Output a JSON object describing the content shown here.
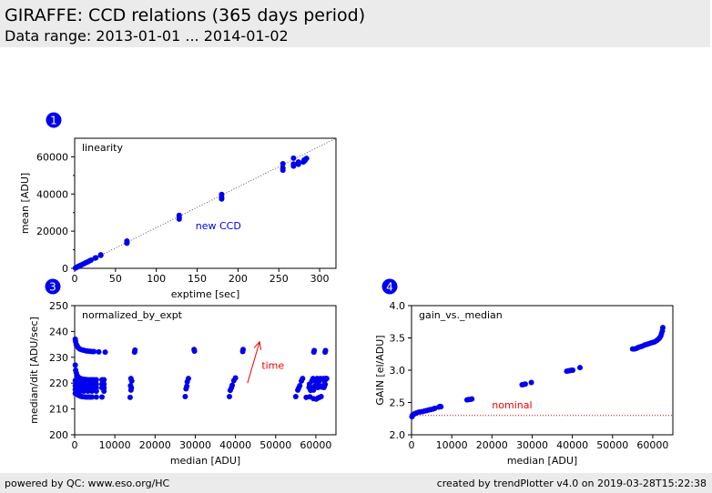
{
  "header": {
    "title": "GIRAFFE: CCD relations (365 days period)",
    "subtitle": "Data range: 2013-01-01 ... 2014-01-02"
  },
  "footer": {
    "left": "powered by QC: www.eso.org/HC",
    "right": "created by trendPlotter v4.0 on 2019-03-28T15:22:38"
  },
  "colors": {
    "points": "#0000ee",
    "badge": "#0000ee",
    "annotation": "#ee0000",
    "header_bg": "#ebebeb"
  },
  "chart_data": [
    {
      "id": "1",
      "badge": "1",
      "type": "scatter",
      "title": "linearity",
      "xlabel": "exptime [sec]",
      "ylabel": "mean [ADU]",
      "xlim": [
        0,
        320
      ],
      "ylim": [
        0,
        70000
      ],
      "xticks": [
        0,
        50,
        100,
        150,
        200,
        250,
        300
      ],
      "yticks": [
        0,
        20000,
        40000,
        60000
      ],
      "yminor": [
        10000,
        30000,
        50000
      ],
      "grid": false,
      "annotations": [
        {
          "text": "new CCD",
          "x": 148,
          "y": 21000,
          "color": "#0000ee"
        }
      ],
      "reference_line": {
        "style": "dotted",
        "color": "#555555",
        "points": [
          [
            0,
            0
          ],
          [
            320,
            70000
          ]
        ]
      },
      "points": [
        [
          1,
          200
        ],
        [
          2,
          450
        ],
        [
          3,
          680
        ],
        [
          4,
          900
        ],
        [
          5,
          1100
        ],
        [
          6,
          1350
        ],
        [
          7,
          1550
        ],
        [
          8,
          1800
        ],
        [
          10,
          2200
        ],
        [
          12,
          2650
        ],
        [
          14,
          3100
        ],
        [
          16,
          3500
        ],
        [
          18,
          3950
        ],
        [
          20,
          4400
        ],
        [
          25,
          5500
        ],
        [
          26,
          5700
        ],
        [
          32,
          7000
        ],
        [
          32,
          7300
        ],
        [
          64,
          13500
        ],
        [
          64,
          14200
        ],
        [
          64,
          14700
        ],
        [
          128,
          26500
        ],
        [
          128,
          27500
        ],
        [
          128,
          28500
        ],
        [
          180,
          37300
        ],
        [
          180,
          38200
        ],
        [
          180,
          39800
        ],
        [
          255,
          52800
        ],
        [
          255,
          54000
        ],
        [
          255,
          56300
        ],
        [
          268,
          55000
        ],
        [
          268,
          56200
        ],
        [
          268,
          59300
        ],
        [
          274,
          56000
        ],
        [
          274,
          57200
        ],
        [
          280,
          57200
        ],
        [
          281,
          58300
        ],
        [
          283,
          58800
        ],
        [
          284,
          59200
        ],
        [
          282,
          58000
        ]
      ]
    },
    {
      "id": "3",
      "badge": "3",
      "type": "scatter",
      "title": "normalized_by_expt",
      "xlabel": "median [ADU]",
      "ylabel": "median/dit [ADU/sec]",
      "xlim": [
        0,
        65000
      ],
      "ylim": [
        200,
        250
      ],
      "xticks": [
        0,
        10000,
        20000,
        30000,
        40000,
        50000,
        60000
      ],
      "yticks": [
        200,
        210,
        220,
        230,
        240,
        250
      ],
      "grid": false,
      "annotations": [
        {
          "text": "time",
          "x": 46500,
          "y": 225.5,
          "color": "#ee0000"
        }
      ],
      "arrow": {
        "from": [
          43000,
          220
        ],
        "to": [
          46000,
          236
        ],
        "color": "#ee0000"
      },
      "points": [
        [
          150,
          237
        ],
        [
          250,
          236
        ],
        [
          400,
          235
        ],
        [
          600,
          234.5
        ],
        [
          900,
          233.7
        ],
        [
          1300,
          233.2
        ],
        [
          1800,
          232.9
        ],
        [
          2300,
          232.7
        ],
        [
          2800,
          232.5
        ],
        [
          3300,
          232.4
        ],
        [
          3800,
          232.3
        ],
        [
          4300,
          232.2
        ],
        [
          4800,
          232.2
        ],
        [
          6000,
          232.1
        ],
        [
          7600,
          232
        ],
        [
          14900,
          232
        ],
        [
          15000,
          232.8
        ],
        [
          29800,
          232.4
        ],
        [
          29700,
          233
        ],
        [
          41800,
          232.2
        ],
        [
          41900,
          233
        ],
        [
          59500,
          232
        ],
        [
          59600,
          232.6
        ],
        [
          62300,
          232
        ],
        [
          62400,
          232.6
        ],
        [
          150,
          227
        ],
        [
          250,
          225
        ],
        [
          400,
          224
        ],
        [
          600,
          223
        ],
        [
          900,
          222.3
        ],
        [
          1300,
          221.9
        ],
        [
          1800,
          221.6
        ],
        [
          2300,
          221.5
        ],
        [
          2800,
          221.4
        ],
        [
          3300,
          221.3
        ],
        [
          3800,
          221.3
        ],
        [
          4300,
          221.3
        ],
        [
          4800,
          221.3
        ],
        [
          5400,
          221.3
        ],
        [
          6800,
          221.3
        ],
        [
          7300,
          221.3
        ],
        [
          150,
          221
        ],
        [
          400,
          220.5
        ],
        [
          900,
          220
        ],
        [
          1300,
          219.8
        ],
        [
          1800,
          219.7
        ],
        [
          2300,
          219.6
        ],
        [
          2800,
          219.6
        ],
        [
          3300,
          219.6
        ],
        [
          3800,
          219.6
        ],
        [
          4300,
          219.6
        ],
        [
          5400,
          219.6
        ],
        [
          6800,
          219.6
        ],
        [
          7300,
          219.6
        ],
        [
          150,
          219
        ],
        [
          400,
          218.8
        ],
        [
          900,
          218.6
        ],
        [
          1300,
          218.4
        ],
        [
          1800,
          218.3
        ],
        [
          2300,
          218.2
        ],
        [
          2800,
          218.2
        ],
        [
          3300,
          218.2
        ],
        [
          3800,
          218.2
        ],
        [
          4300,
          218.2
        ],
        [
          5400,
          218.2
        ],
        [
          6800,
          218.2
        ],
        [
          7300,
          218.2
        ],
        [
          150,
          217.5
        ],
        [
          400,
          217.3
        ],
        [
          900,
          217.2
        ],
        [
          1300,
          217
        ],
        [
          1800,
          217
        ],
        [
          2300,
          216.9
        ],
        [
          3300,
          216.9
        ],
        [
          4300,
          216.9
        ],
        [
          5400,
          216.9
        ],
        [
          7300,
          216.9
        ],
        [
          150,
          216
        ],
        [
          400,
          215.8
        ],
        [
          900,
          215.3
        ],
        [
          1300,
          215
        ],
        [
          1800,
          214.8
        ],
        [
          2300,
          214.7
        ],
        [
          2800,
          214.6
        ],
        [
          3300,
          214.6
        ],
        [
          3800,
          214.6
        ],
        [
          4300,
          214.6
        ],
        [
          5400,
          214.6
        ],
        [
          6800,
          214.6
        ],
        [
          14000,
          221.8
        ],
        [
          14200,
          220.8
        ],
        [
          13900,
          219
        ],
        [
          14100,
          218.2
        ],
        [
          14000,
          217.3
        ],
        [
          13800,
          214.5
        ],
        [
          28300,
          221.8
        ],
        [
          28000,
          220.5
        ],
        [
          27900,
          218.8
        ],
        [
          27700,
          217.8
        ],
        [
          27500,
          214.8
        ],
        [
          40000,
          222
        ],
        [
          39600,
          221
        ],
        [
          39200,
          219.2
        ],
        [
          39000,
          218.2
        ],
        [
          38700,
          217.2
        ],
        [
          38500,
          214.8
        ],
        [
          56700,
          221.8
        ],
        [
          56400,
          220.8
        ],
        [
          56000,
          219
        ],
        [
          55700,
          218
        ],
        [
          55500,
          217.3
        ],
        [
          55000,
          214.8
        ],
        [
          57600,
          214.5
        ],
        [
          58300,
          218.3
        ],
        [
          58400,
          219.6
        ],
        [
          59300,
          221.8
        ],
        [
          59000,
          220.8
        ],
        [
          58800,
          218.2
        ],
        [
          58700,
          217.2
        ],
        [
          58500,
          214.7
        ],
        [
          60300,
          221.8
        ],
        [
          60000,
          220.8
        ],
        [
          59800,
          219
        ],
        [
          59600,
          218.2
        ],
        [
          59400,
          217.3
        ],
        [
          59400,
          214
        ],
        [
          60100,
          213.8
        ],
        [
          60500,
          214.2
        ],
        [
          60900,
          214.5
        ],
        [
          61300,
          214.8
        ],
        [
          61100,
          221.8
        ],
        [
          60900,
          220.8
        ],
        [
          60700,
          219.2
        ],
        [
          60500,
          218.3
        ],
        [
          61400,
          218.5
        ],
        [
          61800,
          219
        ],
        [
          62100,
          218.8
        ],
        [
          61900,
          221.8
        ],
        [
          62200,
          220.8
        ],
        [
          62500,
          221.8
        ],
        [
          62700,
          221.8
        ],
        [
          62300,
          219.5
        ],
        [
          62000,
          218.3
        ]
      ]
    },
    {
      "id": "4",
      "badge": "4",
      "type": "scatter",
      "title": "gain_vs._median",
      "xlabel": "median [ADU]",
      "ylabel": "GAIN [el/ADU]",
      "xlim": [
        0,
        65000
      ],
      "ylim": [
        2.0,
        4.0
      ],
      "xticks": [
        0,
        10000,
        20000,
        30000,
        40000,
        50000,
        60000
      ],
      "yticks": [
        2.0,
        2.5,
        3.0,
        3.5,
        4.0
      ],
      "grid": false,
      "annotations": [
        {
          "text": "nominal",
          "x": 20000,
          "y": 2.41,
          "color": "#ee0000"
        }
      ],
      "hline": {
        "y": 2.3,
        "style": "dotted",
        "color": "#ee0000"
      },
      "points": [
        [
          100,
          2.28
        ],
        [
          200,
          2.3
        ],
        [
          400,
          2.31
        ],
        [
          600,
          2.32
        ],
        [
          900,
          2.33
        ],
        [
          1300,
          2.34
        ],
        [
          1800,
          2.35
        ],
        [
          2300,
          2.355
        ],
        [
          2800,
          2.36
        ],
        [
          3300,
          2.37
        ],
        [
          3800,
          2.375
        ],
        [
          4300,
          2.385
        ],
        [
          4800,
          2.39
        ],
        [
          5400,
          2.4
        ],
        [
          5800,
          2.41
        ],
        [
          6800,
          2.43
        ],
        [
          7100,
          2.44
        ],
        [
          7300,
          2.435
        ],
        [
          13800,
          2.54
        ],
        [
          14200,
          2.545
        ],
        [
          14700,
          2.55
        ],
        [
          15000,
          2.555
        ],
        [
          27500,
          2.775
        ],
        [
          27900,
          2.78
        ],
        [
          28300,
          2.785
        ],
        [
          29800,
          2.81
        ],
        [
          38600,
          2.985
        ],
        [
          39000,
          2.99
        ],
        [
          39400,
          2.995
        ],
        [
          39800,
          3.0
        ],
        [
          40100,
          3.0
        ],
        [
          41900,
          3.04
        ],
        [
          55000,
          3.33
        ],
        [
          55500,
          3.33
        ],
        [
          56000,
          3.34
        ],
        [
          56500,
          3.355
        ],
        [
          57000,
          3.365
        ],
        [
          57500,
          3.375
        ],
        [
          58000,
          3.39
        ],
        [
          58500,
          3.4
        ],
        [
          59000,
          3.41
        ],
        [
          59500,
          3.42
        ],
        [
          60000,
          3.43
        ],
        [
          60500,
          3.44
        ],
        [
          61000,
          3.46
        ],
        [
          61400,
          3.48
        ],
        [
          61700,
          3.5
        ],
        [
          62000,
          3.53
        ],
        [
          62200,
          3.57
        ],
        [
          62400,
          3.61
        ],
        [
          62500,
          3.66
        ]
      ]
    }
  ]
}
